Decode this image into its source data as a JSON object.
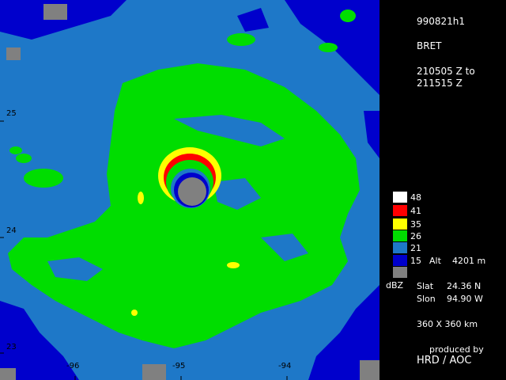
{
  "header": {
    "image_id": "990821h1",
    "storm_name": "BRET",
    "time_start": "210505 Z to",
    "time_end": "211515 Z"
  },
  "legend": {
    "unit": "dBZ",
    "levels": [
      {
        "label": "48",
        "color": "#ffffff"
      },
      {
        "label": "41",
        "color": "#ff0000"
      },
      {
        "label": "35",
        "color": "#ffff00"
      },
      {
        "label": "26",
        "color": "#00dd00"
      },
      {
        "label": "21",
        "color": "#1e78c8"
      },
      {
        "label": "15",
        "color": "#0000cc"
      },
      {
        "label": "",
        "color": "#808080"
      }
    ],
    "alt_label": "Alt",
    "alt_value": "4201 m"
  },
  "position": {
    "slat_label": "Slat",
    "slat_value": "24.36 N",
    "slon_label": "Slon",
    "slon_value": "94.90 W"
  },
  "domain_size": "360 X 360 km",
  "credit": {
    "line1": "produced by",
    "line2": "HRD / AOC"
  },
  "axes": {
    "lat_labels": [
      "25",
      "24",
      "23"
    ],
    "lon_labels": [
      "-96",
      "-95",
      "-94"
    ]
  }
}
